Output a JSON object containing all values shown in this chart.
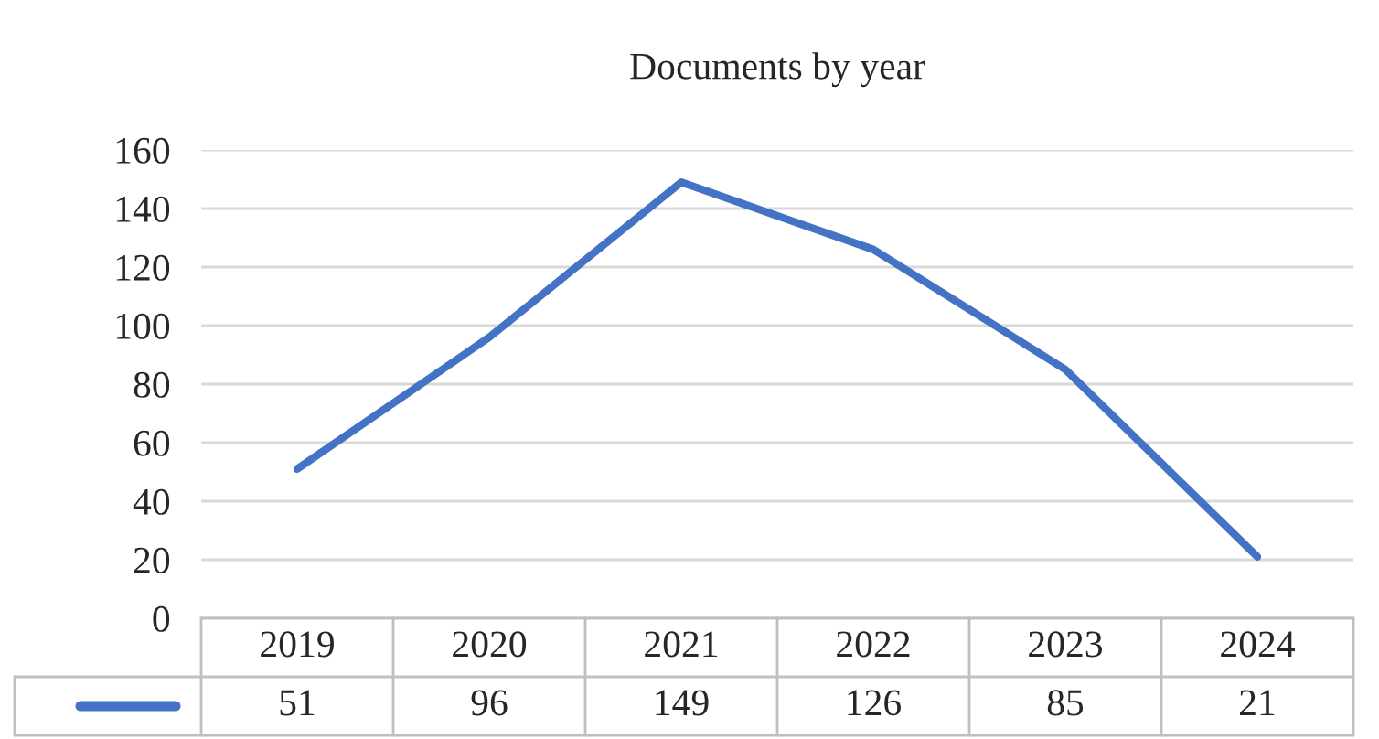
{
  "chart_data": {
    "type": "line",
    "title": "Documents by year",
    "categories": [
      "2019",
      "2020",
      "2021",
      "2022",
      "2023",
      "2024"
    ],
    "series": [
      {
        "color": "#4472c4",
        "values": [
          51,
          96,
          149,
          126,
          85,
          21
        ]
      }
    ],
    "ylim": [
      0,
      160
    ],
    "yticks": [
      0,
      20,
      40,
      60,
      80,
      100,
      120,
      140,
      160
    ],
    "grid": "y",
    "data_labels": true,
    "marker": "none",
    "line_style": "solid"
  }
}
